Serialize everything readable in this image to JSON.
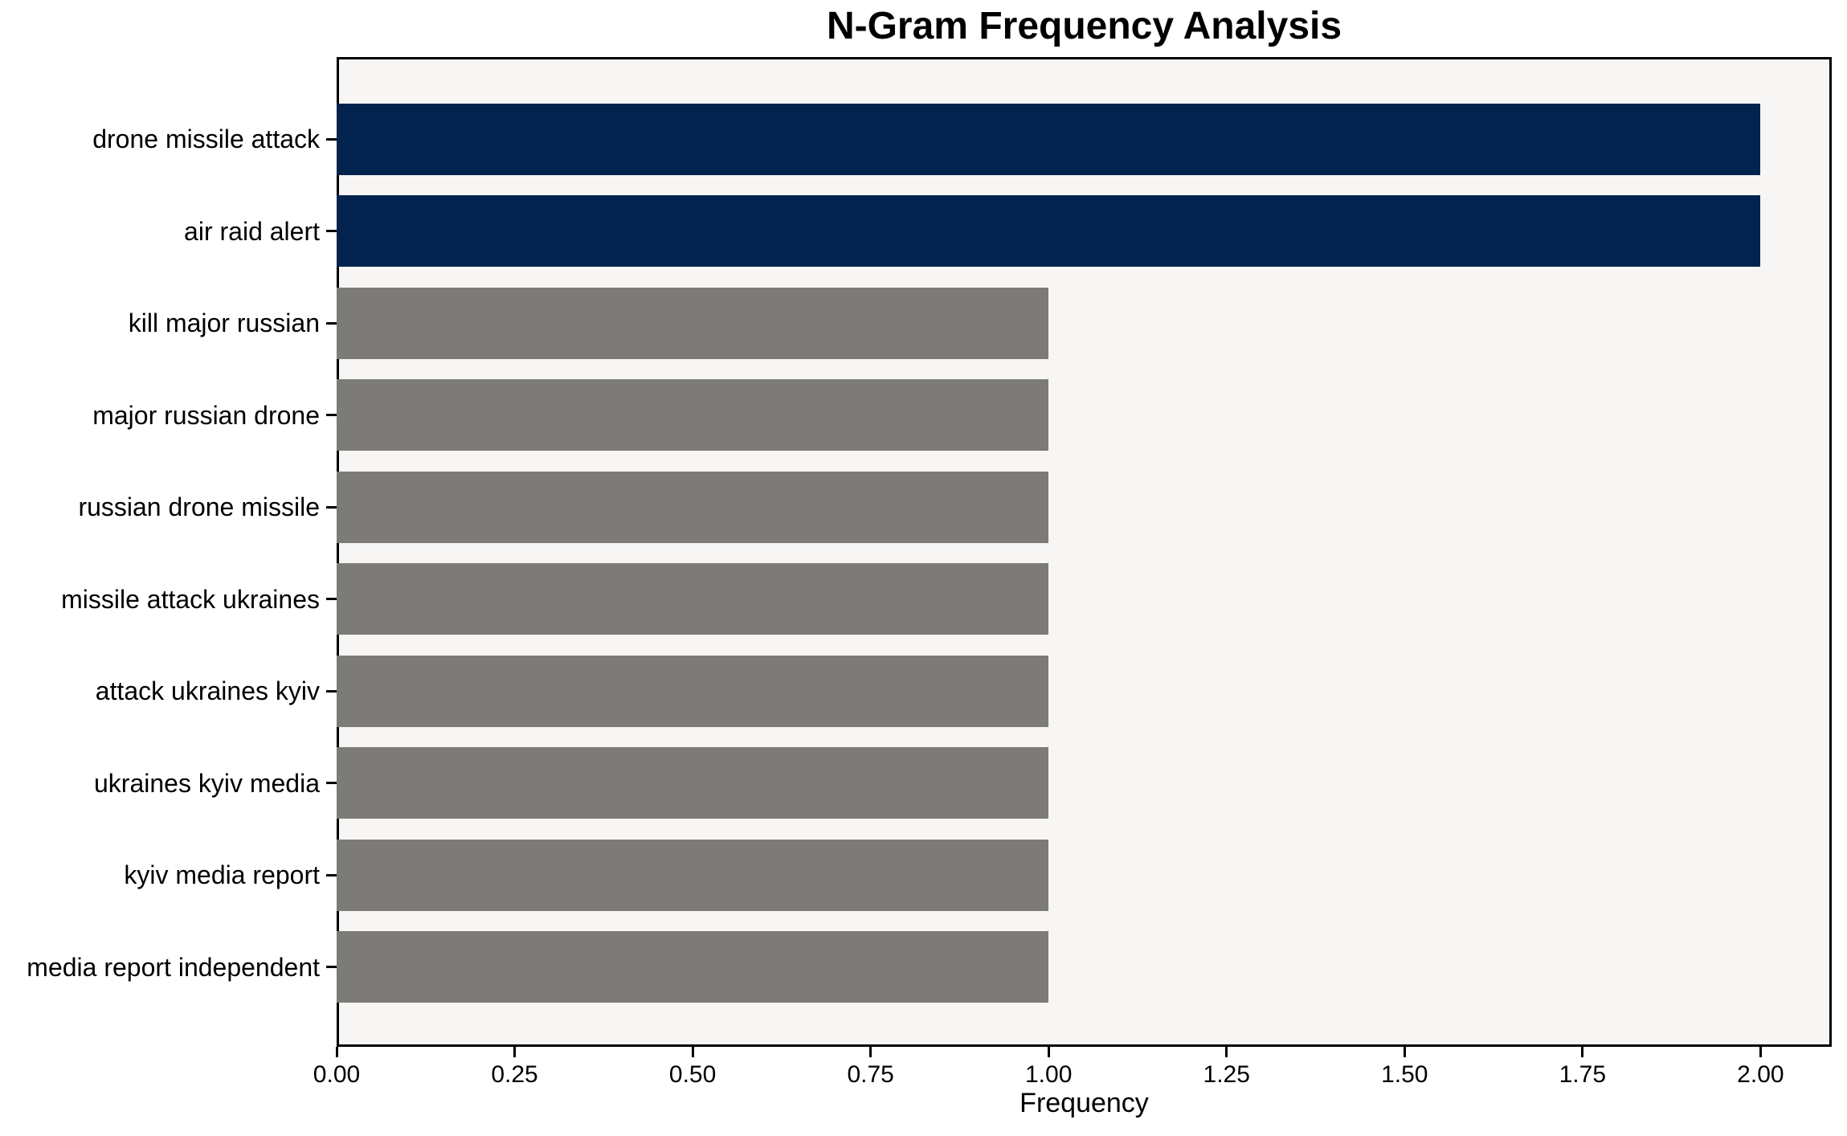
{
  "chart_data": {
    "type": "bar",
    "orientation": "horizontal",
    "title": "N-Gram Frequency Analysis",
    "xlabel": "Frequency",
    "ylabel": "",
    "categories": [
      "drone missile attack",
      "air raid alert",
      "kill major russian",
      "major russian drone",
      "russian drone missile",
      "missile attack ukraines",
      "attack ukraines kyiv",
      "ukraines kyiv media",
      "kyiv media report",
      "media report independent"
    ],
    "values": [
      2,
      2,
      1,
      1,
      1,
      1,
      1,
      1,
      1,
      1
    ],
    "bar_colors": [
      "#02234d",
      "#02234d",
      "#7c7b77",
      "#7c7b77",
      "#7c7b77",
      "#7c7b77",
      "#7c7b77",
      "#7c7b77",
      "#7c7b77",
      "#7c7b77"
    ],
    "xlim": [
      0,
      2.1
    ],
    "xtick_values": [
      0,
      0.25,
      0.5,
      0.75,
      1,
      1.25,
      1.5,
      1.75,
      2
    ],
    "xtick_labels": [
      "0.00",
      "0.25",
      "0.50",
      "0.75",
      "1.00",
      "1.25",
      "1.50",
      "1.75",
      "2.00"
    ],
    "grid": false,
    "legend": "none",
    "colors": {
      "highlight": "#02234d",
      "base": "#7c7b77",
      "plot_background": "#f7f6f5",
      "figure_background": "#ffffff",
      "axis": "#000000",
      "text": "#000000"
    }
  }
}
